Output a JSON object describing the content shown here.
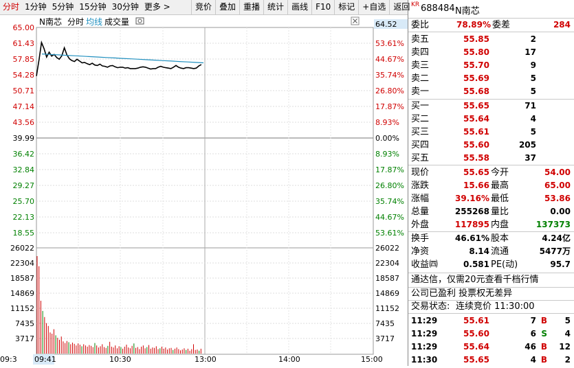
{
  "toolbar": {
    "periods": [
      "分时",
      "1分钟",
      "5分钟",
      "15分钟",
      "30分钟",
      "更多 >"
    ],
    "tools": [
      "竞价",
      "叠加",
      "重播",
      "统计",
      "画线",
      "F10",
      "标记",
      "+自选",
      "返回"
    ]
  },
  "chart": {
    "stock_label": "N南芯",
    "mode_tabs": [
      "分时",
      "均线",
      "成交量"
    ],
    "price_readout": "64.52",
    "time_cursor": "09:41",
    "time_start_cut": "09:3",
    "price_ticks": [
      "65.00",
      "61.43",
      "57.85",
      "54.28",
      "50.71",
      "47.14",
      "43.56",
      "39.99",
      "36.42",
      "32.84",
      "29.27",
      "25.70",
      "22.13",
      "18.55"
    ],
    "pct_ticks": [
      "53.61%",
      "44.67%",
      "35.74%",
      "26.80%",
      "17.87%",
      "8.93%",
      "0.00%",
      "8.93%",
      "17.87%",
      "26.80%",
      "35.74%",
      "44.67%",
      "53.61%"
    ],
    "vol_ticks": [
      "26022",
      "22304",
      "18587",
      "14869",
      "11152",
      "7435",
      "3717"
    ],
    "time_ticks": [
      "10:30",
      "13:00",
      "14:00",
      "15:00"
    ],
    "colors": {
      "up": "#d00000",
      "down": "#008000",
      "price": "#000000",
      "avg": "#1f8fbf",
      "volume": "#d00000"
    }
  },
  "chart_data": {
    "type": "line",
    "series": [
      {
        "values": [
          54.0,
          57.6,
          61.6,
          60.2,
          58.3,
          59.4,
          58.5,
          58.9,
          58.2,
          57.8,
          58.6,
          60.4,
          58.8,
          57.9,
          57.5,
          57.3,
          57.8,
          57.4,
          57.0,
          57.1,
          56.8,
          56.6,
          56.9,
          56.5,
          56.4,
          56.7,
          56.3,
          56.2,
          56.0,
          56.3,
          56.4,
          56.1,
          55.9,
          56.0,
          56.0,
          55.8,
          55.9,
          55.7,
          55.7,
          55.7,
          55.8,
          56.0,
          56.1,
          56.0,
          55.8,
          55.6,
          55.7,
          55.7,
          56.0,
          56.2,
          56.0,
          55.9,
          55.8,
          55.7,
          56.0,
          56.4,
          56.0,
          55.8,
          55.7,
          55.9,
          55.9,
          55.8,
          55.7,
          55.8,
          56.3,
          56.6
        ]
      },
      {
        "values": [
          59.0,
          58.9,
          58.8,
          58.7,
          58.6,
          58.5,
          58.4,
          58.3,
          58.2,
          58.1,
          58.0,
          57.9,
          57.8,
          57.7,
          57.6,
          57.5,
          57.4,
          57.3,
          57.2,
          57.1,
          57.0
        ]
      }
    ],
    "ylim": [
      18.55,
      65.0
    ],
    "volume": [
      24000,
      21500,
      13000,
      10500,
      9000,
      7500,
      6800,
      5200,
      4900,
      6000,
      4500,
      3900,
      3400,
      4200,
      3000,
      2600,
      3100,
      2800,
      2300,
      2700,
      2400,
      2000,
      2500,
      2200,
      1800,
      2300,
      2000,
      1700,
      2100,
      1900,
      1600,
      2600,
      2000,
      1500,
      1800,
      2300,
      1600,
      1400,
      1900,
      2900,
      1700,
      1500,
      2000,
      1300,
      1800,
      1600,
      1200,
      1700,
      2200,
      1500,
      1300,
      1900,
      2500,
      1400,
      1600,
      1100,
      1700,
      2000,
      1300,
      1600,
      2100,
      1200,
      1500,
      1400,
      1800,
      1100,
      1300,
      1700,
      1200,
      1500,
      1000,
      1300,
      1400,
      900,
      1200,
      1500,
      1100,
      800,
      1000,
      1300,
      900,
      1200,
      700,
      1100,
      2300,
      900,
      1000,
      700,
      1200
    ]
  },
  "panel": {
    "code": "688484",
    "name": "N南芯",
    "market": "KR",
    "wei_bi_label": "委比",
    "wei_bi": "78.89%",
    "wei_cha_label": "委差",
    "wei_cha": "284",
    "asks": [
      {
        "label": "卖五",
        "price": "55.85",
        "vol": "2"
      },
      {
        "label": "卖四",
        "price": "55.80",
        "vol": "17"
      },
      {
        "label": "卖三",
        "price": "55.70",
        "vol": "9"
      },
      {
        "label": "卖二",
        "price": "55.69",
        "vol": "5"
      },
      {
        "label": "卖一",
        "price": "55.68",
        "vol": "5"
      }
    ],
    "bids": [
      {
        "label": "买一",
        "price": "55.65",
        "vol": "71"
      },
      {
        "label": "买二",
        "price": "55.64",
        "vol": "4"
      },
      {
        "label": "买三",
        "price": "55.61",
        "vol": "5"
      },
      {
        "label": "买四",
        "price": "55.60",
        "vol": "205"
      },
      {
        "label": "买五",
        "price": "55.58",
        "vol": "37"
      }
    ],
    "quote": [
      {
        "l1": "现价",
        "v1": "55.65",
        "c1": "red",
        "l2": "今开",
        "v2": "54.00",
        "c2": "red"
      },
      {
        "l1": "涨跌",
        "v1": "15.66",
        "c1": "red",
        "l2": "最高",
        "v2": "65.00",
        "c2": "red"
      },
      {
        "l1": "涨幅",
        "v1": "39.16%",
        "c1": "red",
        "l2": "最低",
        "v2": "53.86",
        "c2": "red"
      },
      {
        "l1": "总量",
        "v1": "255268",
        "c1": "black",
        "l2": "量比",
        "v2": "0.00",
        "c2": "black"
      },
      {
        "l1": "外盘",
        "v1": "117895",
        "c1": "red",
        "l2": "内盘",
        "v2": "137373",
        "c2": "green"
      }
    ],
    "fund": [
      {
        "l1": "换手",
        "v1": "46.61%",
        "l2": "股本",
        "v2": "4.24亿"
      },
      {
        "l1": "净资",
        "v1": "8.14",
        "l2": "流通",
        "v2": "5477万"
      },
      {
        "l1": "收益㈣",
        "v1": "0.581",
        "l2": "PE(动)",
        "v2": "95.7"
      }
    ],
    "promo": "通达信，仅需20元查看千档行情",
    "notice": "公司已盈利 投票权无差异",
    "status_label": "交易状态:",
    "status": "连续竞价 11:30:00",
    "ticks": [
      {
        "time": "11:29",
        "price": "55.61",
        "vol": "7",
        "dir": "B",
        "n": "5"
      },
      {
        "time": "11:29",
        "price": "55.60",
        "vol": "6",
        "dir": "S",
        "n": "4"
      },
      {
        "time": "11:29",
        "price": "55.64",
        "vol": "46",
        "dir": "B",
        "n": "12"
      },
      {
        "time": "11:30",
        "price": "55.65",
        "vol": "4",
        "dir": "B",
        "n": "2"
      }
    ]
  }
}
